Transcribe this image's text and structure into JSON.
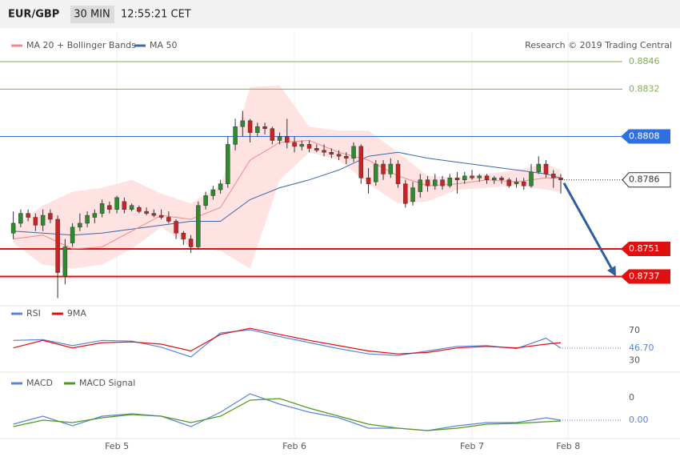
{
  "chart_data": {
    "type": "candlestick",
    "pair": "EUR/GBP",
    "timeframe": "30 MIN",
    "time": "12:55:21 CET",
    "credit": "Research © 2019 Trading Central",
    "xlim": [
      -0.5,
      82
    ],
    "xticks": [
      {
        "value": 14,
        "label": "Feb 5"
      },
      {
        "value": 38,
        "label": "Feb 6"
      },
      {
        "value": 62,
        "label": "Feb 7"
      },
      {
        "value": 75,
        "label": "Feb 8"
      }
    ],
    "ylim": [
      0.8725,
      0.8861
    ],
    "candles": {
      "up_color": "#2e8b2e",
      "down_color": "#cc2222",
      "x": [
        0,
        1,
        2,
        3,
        4,
        5,
        6,
        7,
        8,
        9,
        10,
        11,
        12,
        13,
        14,
        15,
        16,
        17,
        18,
        19,
        20,
        21,
        22,
        23,
        24,
        25,
        26,
        27,
        28,
        29,
        30,
        31,
        32,
        33,
        34,
        35,
        36,
        37,
        38,
        39,
        40,
        41,
        42,
        43,
        44,
        45,
        46,
        47,
        48,
        49,
        50,
        51,
        52,
        53,
        54,
        55,
        56,
        57,
        58,
        59,
        60,
        61,
        62,
        63,
        64,
        65,
        66,
        67,
        68,
        69,
        70,
        71,
        72,
        73,
        74
      ],
      "open": [
        0.8759,
        0.8764,
        0.8769,
        0.8767,
        0.8763,
        0.8769,
        0.8766,
        0.8737,
        0.8754,
        0.8762,
        0.8764,
        0.8767,
        0.8769,
        0.8773,
        0.8771,
        0.8775,
        0.8771,
        0.8772,
        0.877,
        0.8769,
        0.8768,
        0.8767,
        0.8765,
        0.8759,
        0.8756,
        0.8752,
        0.8773,
        0.8778,
        0.8781,
        0.8784,
        0.8804,
        0.8813,
        0.8816,
        0.881,
        0.8813,
        0.8812,
        0.8806,
        0.8808,
        0.8805,
        0.8803,
        0.8804,
        0.8802,
        0.8801,
        0.88,
        0.8799,
        0.8798,
        0.8797,
        0.8803,
        0.8787,
        0.8785,
        0.8794,
        0.8789,
        0.8794,
        0.8784,
        0.8775,
        0.878,
        0.8786,
        0.8783,
        0.8786,
        0.8783,
        0.8787,
        0.8786,
        0.8788,
        0.8787,
        0.8788,
        0.8786,
        0.8787,
        0.8786,
        0.8784,
        0.8785,
        0.8783,
        0.879,
        0.8794,
        0.8789,
        0.8787
      ],
      "high": [
        0.877,
        0.8771,
        0.8771,
        0.8769,
        0.8771,
        0.8771,
        0.8768,
        0.8756,
        0.8764,
        0.8769,
        0.877,
        0.8771,
        0.8776,
        0.8775,
        0.8778,
        0.8777,
        0.8774,
        0.8773,
        0.8772,
        0.8771,
        0.8771,
        0.877,
        0.8766,
        0.876,
        0.8758,
        0.8775,
        0.878,
        0.8783,
        0.8786,
        0.8808,
        0.8817,
        0.8821,
        0.8817,
        0.8815,
        0.8815,
        0.8813,
        0.881,
        0.8817,
        0.8808,
        0.8806,
        0.8806,
        0.8804,
        0.8804,
        0.8802,
        0.8801,
        0.88,
        0.8805,
        0.8804,
        0.8792,
        0.8796,
        0.8796,
        0.8797,
        0.8796,
        0.8786,
        0.8785,
        0.8789,
        0.8788,
        0.8789,
        0.8788,
        0.8789,
        0.879,
        0.879,
        0.8791,
        0.8789,
        0.8789,
        0.8788,
        0.8788,
        0.8787,
        0.8787,
        0.8787,
        0.8794,
        0.8798,
        0.8796,
        0.8791,
        0.8789
      ],
      "low": [
        0.8756,
        0.8762,
        0.8765,
        0.876,
        0.876,
        0.8764,
        0.8726,
        0.8733,
        0.8752,
        0.876,
        0.8762,
        0.8764,
        0.8767,
        0.8769,
        0.8769,
        0.8769,
        0.877,
        0.8769,
        0.8768,
        0.8767,
        0.8766,
        0.8764,
        0.8756,
        0.8753,
        0.8749,
        0.8751,
        0.8771,
        0.8776,
        0.8779,
        0.8782,
        0.8801,
        0.8808,
        0.8805,
        0.8808,
        0.8809,
        0.8804,
        0.8804,
        0.8802,
        0.88,
        0.8801,
        0.88,
        0.88,
        0.8798,
        0.8797,
        0.8796,
        0.8794,
        0.8795,
        0.8784,
        0.8779,
        0.8783,
        0.8786,
        0.8787,
        0.8782,
        0.8772,
        0.8773,
        0.8777,
        0.878,
        0.8781,
        0.8781,
        0.8782,
        0.8779,
        0.8784,
        0.8786,
        0.8785,
        0.8784,
        0.8784,
        0.8784,
        0.8782,
        0.8782,
        0.8781,
        0.8782,
        0.8789,
        0.8787,
        0.8782,
        0.8779
      ],
      "close": [
        0.8764,
        0.8769,
        0.8767,
        0.8763,
        0.8768,
        0.8766,
        0.8739,
        0.8752,
        0.8762,
        0.8764,
        0.8768,
        0.8769,
        0.8774,
        0.8771,
        0.8777,
        0.8771,
        0.8773,
        0.877,
        0.8769,
        0.8768,
        0.8767,
        0.8765,
        0.8759,
        0.8756,
        0.8752,
        0.8773,
        0.8778,
        0.8781,
        0.8784,
        0.8804,
        0.8813,
        0.8816,
        0.881,
        0.8813,
        0.8812,
        0.8806,
        0.8808,
        0.8805,
        0.8803,
        0.8804,
        0.8802,
        0.8801,
        0.88,
        0.8799,
        0.8798,
        0.8797,
        0.8803,
        0.8787,
        0.8784,
        0.8794,
        0.8789,
        0.8794,
        0.8784,
        0.8774,
        0.8782,
        0.8786,
        0.8783,
        0.8786,
        0.8783,
        0.8787,
        0.8786,
        0.8788,
        0.8787,
        0.8788,
        0.8786,
        0.8787,
        0.8786,
        0.8783,
        0.8785,
        0.8783,
        0.879,
        0.8794,
        0.8789,
        0.8787,
        0.8786
      ]
    },
    "overlays": {
      "x": [
        0,
        4,
        8,
        12,
        16,
        20,
        24,
        28,
        32,
        36,
        40,
        44,
        48,
        52,
        56,
        60,
        64,
        68,
        72,
        74
      ],
      "bands": {
        "name": "MA 20 + Bollinger Bands",
        "color": "#f08a8a",
        "fill": "#ffe3e3",
        "ma": [
          0.8756,
          0.8758,
          0.8751,
          0.8752,
          0.876,
          0.8768,
          0.8766,
          0.8772,
          0.8796,
          0.8805,
          0.8806,
          0.88,
          0.8796,
          0.8788,
          0.8783,
          0.8784,
          0.8786,
          0.8785,
          0.8787,
          0.8787
        ],
        "upper": [
          0.8762,
          0.8773,
          0.878,
          0.8782,
          0.8786,
          0.8779,
          0.8774,
          0.8783,
          0.8833,
          0.8834,
          0.8813,
          0.8811,
          0.8811,
          0.88,
          0.8788,
          0.8787,
          0.8789,
          0.8791,
          0.8794,
          0.8791
        ],
        "lower": [
          0.8754,
          0.8743,
          0.8741,
          0.8743,
          0.8751,
          0.8762,
          0.8752,
          0.875,
          0.8741,
          0.8786,
          0.88,
          0.8796,
          0.8784,
          0.8774,
          0.8775,
          0.8781,
          0.8782,
          0.8783,
          0.8781,
          0.878
        ]
      },
      "ma50": {
        "name": "MA 50",
        "color": "#3a6aa8",
        "values": [
          0.876,
          0.8759,
          0.8758,
          0.8759,
          0.8761,
          0.8763,
          0.8765,
          0.8765,
          0.8776,
          0.8782,
          0.8786,
          0.8791,
          0.8798,
          0.88,
          0.8797,
          0.8795,
          0.8793,
          0.8791,
          0.8789,
          0.8787
        ]
      }
    },
    "levels": [
      {
        "value": 0.8846,
        "color": "#7cb342",
        "style": "plain"
      },
      {
        "value": 0.8832,
        "color": "#7cb342",
        "style": "plain"
      },
      {
        "value": 0.8808,
        "color": "#2f6fe0",
        "style": "filled"
      },
      {
        "value": 0.8786,
        "color": "#333333",
        "style": "current"
      },
      {
        "value": 0.8751,
        "color": "#e01010",
        "style": "filled"
      },
      {
        "value": 0.8737,
        "color": "#e01010",
        "style": "filled"
      }
    ],
    "rsi": {
      "ylim": [
        18,
        86
      ],
      "yticks": [
        30,
        50,
        70
      ],
      "series": [
        {
          "name": "RSI",
          "color": "#5b84d6",
          "values": [
            57,
            58,
            50,
            57,
            56,
            48,
            35,
            67,
            71,
            62,
            54,
            46,
            39,
            37,
            43,
            49,
            50,
            46,
            60,
            46.7
          ]
        },
        {
          "name": "9MA",
          "color": "#e01010",
          "values": [
            47,
            57,
            47,
            54,
            55,
            52,
            43,
            65,
            73,
            65,
            57,
            50,
            43,
            39,
            41,
            47,
            49,
            47,
            52,
            54
          ]
        }
      ],
      "last": {
        "value": 46.7,
        "label": "46.70"
      }
    },
    "macd": {
      "ylim": [
        -0.00058,
        0.00027
      ],
      "yticks": [
        0
      ],
      "series": [
        {
          "name": "MACD",
          "color": "#5b84d6",
          "values": [
            -0.00033,
            -0.00023,
            -0.00035,
            -0.00023,
            -0.0002,
            -0.00023,
            -0.00036,
            -0.00018,
            5e-05,
            -8e-05,
            -0.00018,
            -0.00025,
            -0.00038,
            -0.00038,
            -0.00041,
            -0.00035,
            -0.00031,
            -0.00031,
            -0.00025,
            -0.00028
          ]
        },
        {
          "name": "MACD Signal",
          "color": "#4e9a1e",
          "values": [
            -0.00036,
            -0.00028,
            -0.00031,
            -0.00025,
            -0.00021,
            -0.00023,
            -0.00031,
            -0.00023,
            -3e-05,
            -1e-05,
            -0.00013,
            -0.00023,
            -0.00033,
            -0.00038,
            -0.00041,
            -0.00038,
            -0.00033,
            -0.00032,
            -0.0003,
            -0.00029
          ]
        }
      ],
      "last": {
        "value": -0.00028,
        "label": "0.00"
      }
    }
  }
}
